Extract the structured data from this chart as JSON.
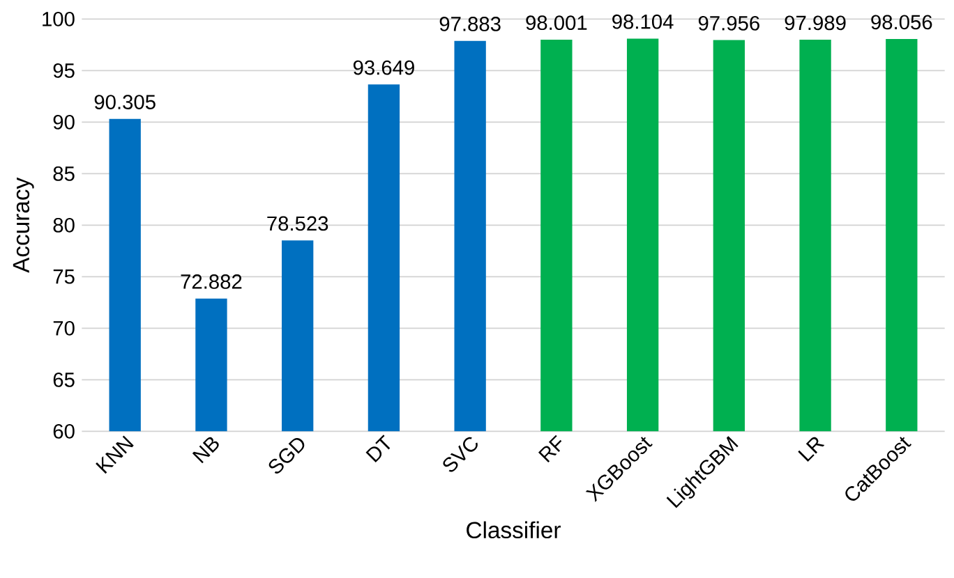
{
  "chart_data": {
    "type": "bar",
    "xlabel": "Classifier",
    "ylabel": "Accuracy",
    "categories": [
      "KNN",
      "NB",
      "SGD",
      "DT",
      "SVC",
      "RF",
      "XGBoost",
      "LightGBM",
      "LR",
      "CatBoost"
    ],
    "values": [
      90.305,
      72.882,
      78.523,
      93.649,
      97.883,
      98.001,
      98.104,
      97.956,
      97.989,
      98.056
    ],
    "colors": [
      "#0070c0",
      "#0070c0",
      "#0070c0",
      "#0070c0",
      "#0070c0",
      "#00b050",
      "#00b050",
      "#00b050",
      "#00b050",
      "#00b050"
    ],
    "ylim": [
      60,
      100
    ],
    "yticks": [
      60,
      65,
      70,
      75,
      80,
      85,
      90,
      95,
      100
    ],
    "grid": "y",
    "data_labels": true
  }
}
